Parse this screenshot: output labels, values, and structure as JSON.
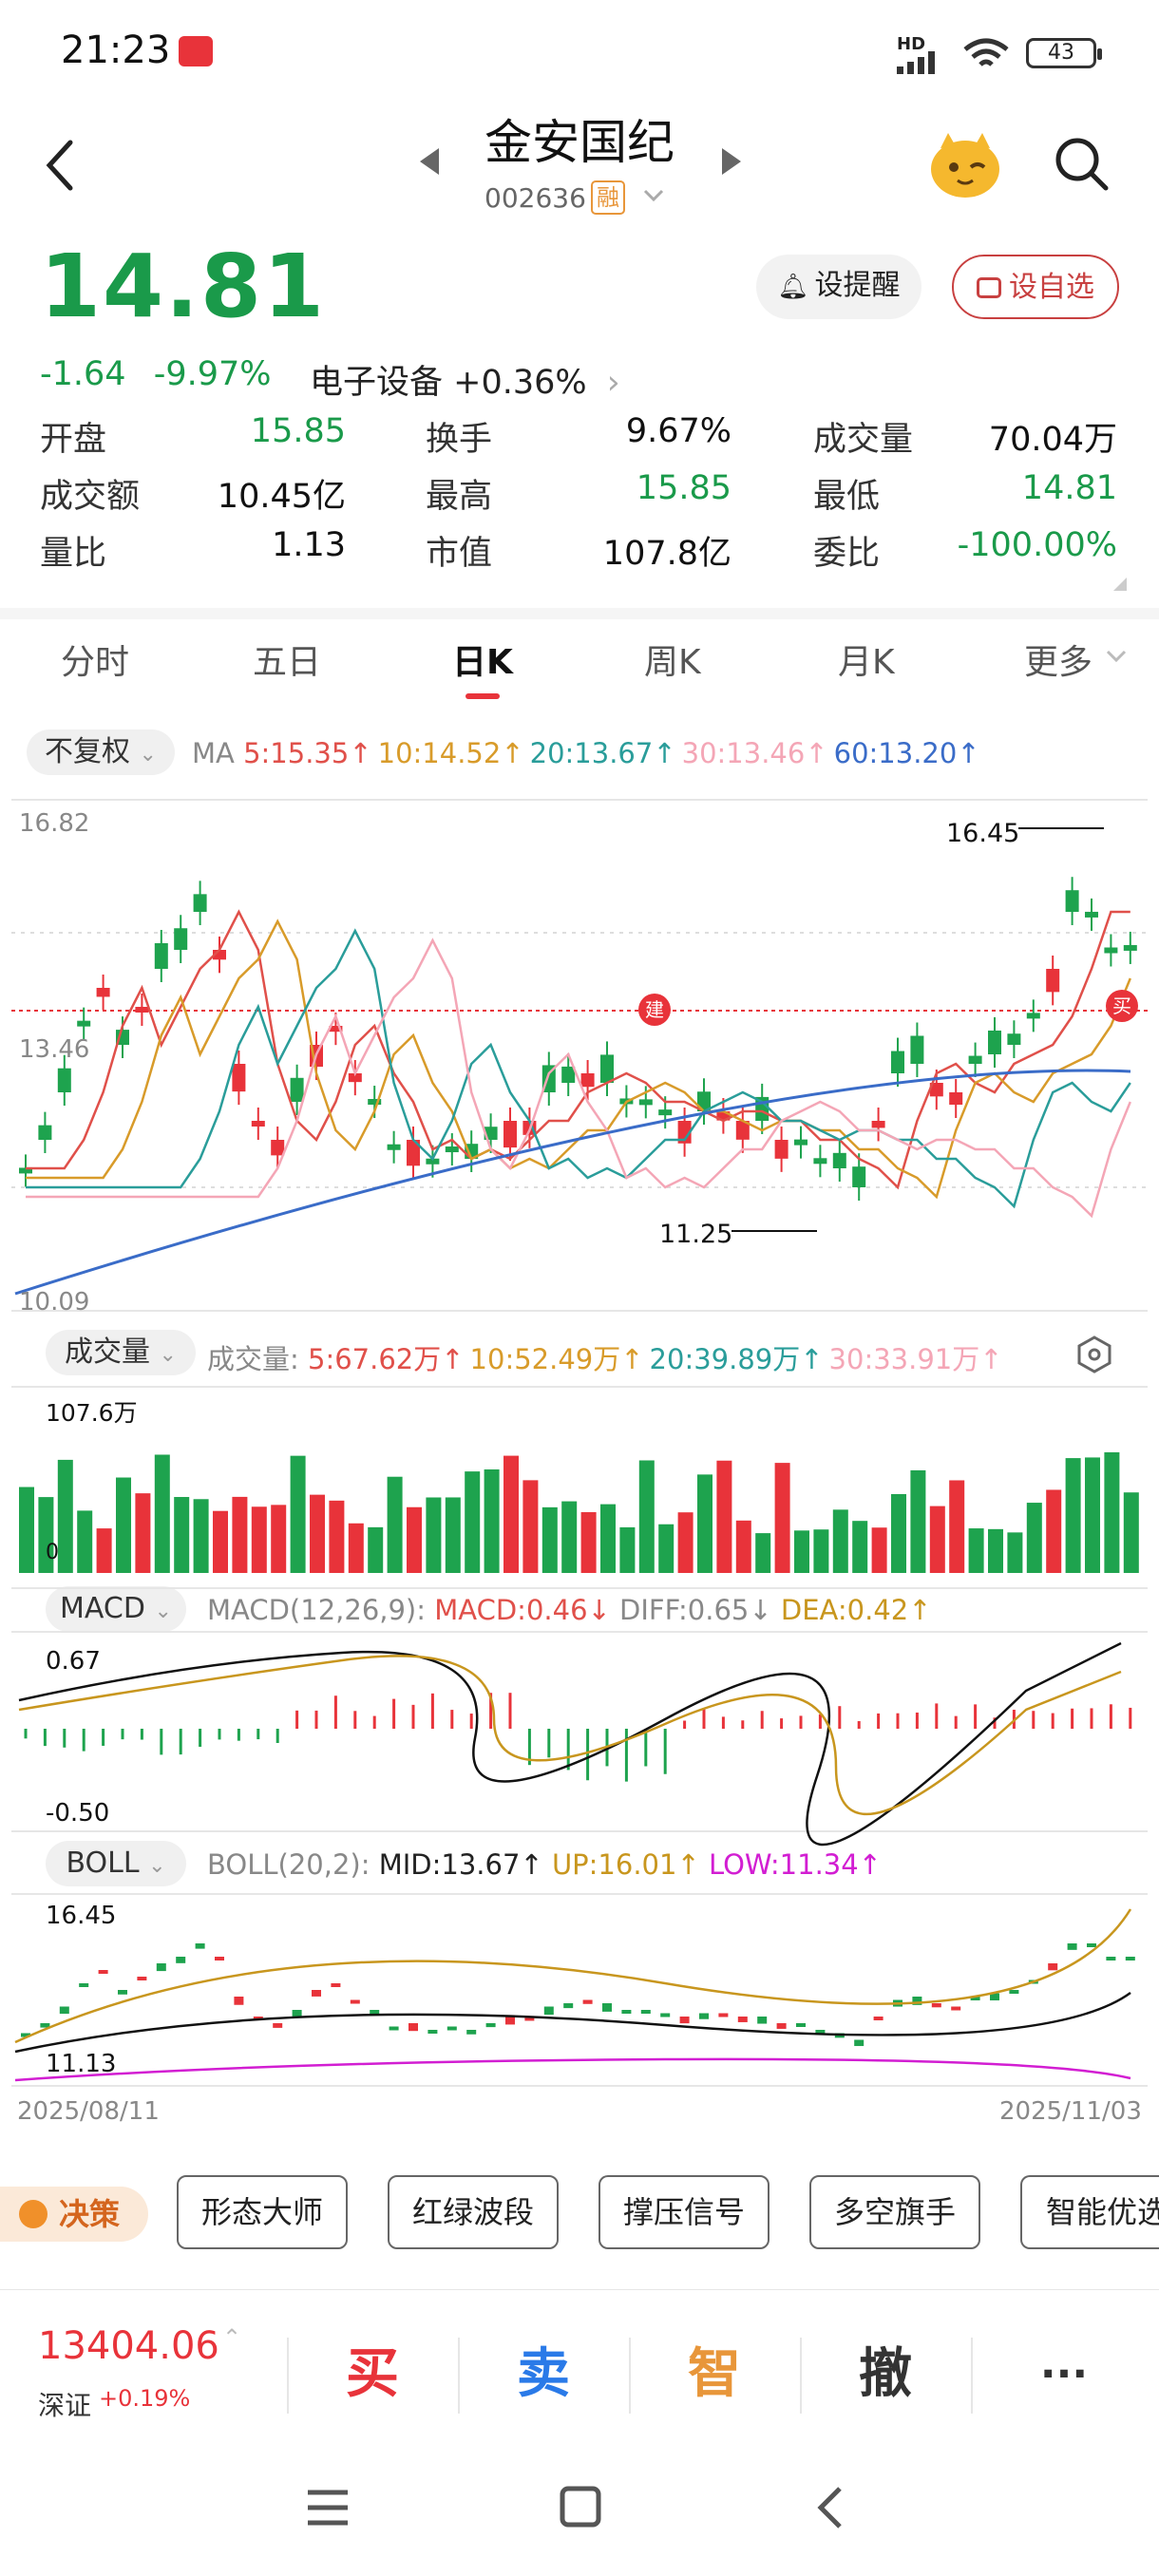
{
  "status": {
    "time": "21:23",
    "network": "HD",
    "battery": "43"
  },
  "header": {
    "name": "金安国纪",
    "code": "002636",
    "margin_tag": "融"
  },
  "quote": {
    "price": "14.81",
    "change": "-1.64",
    "change_pct": "-9.97%",
    "sector": "电子设备 +0.36%",
    "remind_label": "设提醒",
    "watchlist_label": "设自选",
    "stats": [
      {
        "label": "开盘",
        "value": "15.85",
        "color": "green"
      },
      {
        "label": "换手",
        "value": "9.67%",
        "color": "black"
      },
      {
        "label": "成交量",
        "value": "70.04万",
        "color": "black"
      },
      {
        "label": "成交额",
        "value": "10.45亿",
        "color": "black"
      },
      {
        "label": "最高",
        "value": "15.85",
        "color": "green"
      },
      {
        "label": "最低",
        "value": "14.81",
        "color": "green"
      },
      {
        "label": "量比",
        "value": "1.13",
        "color": "black"
      },
      {
        "label": "市值",
        "value": "107.8亿",
        "color": "black"
      },
      {
        "label": "委比",
        "value": "-100.00%",
        "color": "green"
      }
    ]
  },
  "tabs": [
    {
      "label": "分时"
    },
    {
      "label": "五日"
    },
    {
      "label": "日K"
    },
    {
      "label": "周K"
    },
    {
      "label": "月K"
    },
    {
      "label": "更多"
    }
  ],
  "kline": {
    "adjust_label": "不复权",
    "ma_label": "MA",
    "ma": [
      {
        "text": "5:15.35↑",
        "color": "#e0504a"
      },
      {
        "text": "10:14.52↑",
        "color": "#d89b2a"
      },
      {
        "text": "20:13.67↑",
        "color": "#2a9d9a"
      },
      {
        "text": "30:13.46↑",
        "color": "#f4a6b6"
      },
      {
        "text": "60:13.20↑",
        "color": "#3a6cc8"
      }
    ],
    "price_top": "16.82",
    "price_mid": "13.46",
    "price_bottom": "10.09",
    "high_marker": "16.45",
    "low_marker": "11.25",
    "build_tag": "建",
    "buy_tag": "买"
  },
  "volume": {
    "pill": "成交量",
    "label": "成交量:",
    "items": [
      {
        "text": "5:67.62万↑",
        "color": "#e0504a"
      },
      {
        "text": "10:52.49万↑",
        "color": "#d89b2a"
      },
      {
        "text": "20:39.89万↑",
        "color": "#2a9d9a"
      },
      {
        "text": "30:33.91万↑",
        "color": "#f4a6b6"
      }
    ],
    "top": "107.6万",
    "bottom": "0"
  },
  "macd": {
    "pill": "MACD",
    "params": "MACD(12,26,9):",
    "macd": "MACD:0.46↓",
    "diff": "DIFF:0.65↓",
    "dea": "DEA:0.42↑",
    "top": "0.67",
    "bottom": "-0.50"
  },
  "boll": {
    "pill": "BOLL",
    "params": "BOLL(20,2):",
    "mid": "MID:13.67↑",
    "up": "UP:16.01↑",
    "low": "LOW:11.34↑",
    "top": "16.45",
    "bottom": "11.13"
  },
  "dates": {
    "start": "2025/08/11",
    "end": "2025/11/03"
  },
  "strategy": {
    "decision": "决策",
    "buttons": [
      "形态大师",
      "红绿波段",
      "撑压信号",
      "多空旗手",
      "智能优选"
    ]
  },
  "trade": {
    "index_value": "13404.06",
    "index_name": "深证",
    "index_change": "+0.19%",
    "buy": "买",
    "sell": "卖",
    "smart": "智",
    "cancel": "撤",
    "more": "···"
  }
}
